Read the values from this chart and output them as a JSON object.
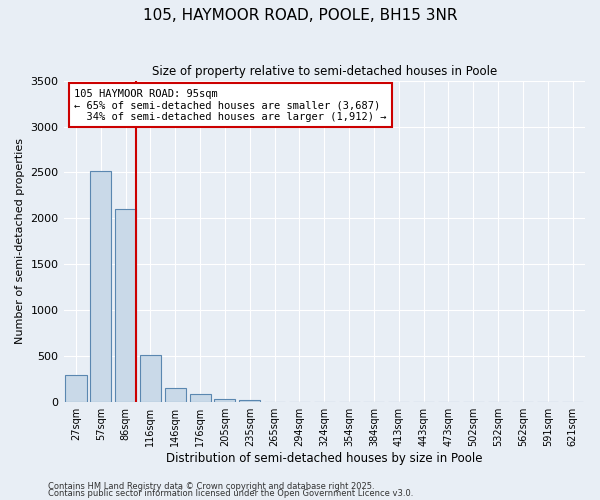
{
  "title1": "105, HAYMOOR ROAD, POOLE, BH15 3NR",
  "title2": "Size of property relative to semi-detached houses in Poole",
  "xlabel": "Distribution of semi-detached houses by size in Poole",
  "ylabel": "Number of semi-detached properties",
  "bin_labels": [
    "27sqm",
    "57sqm",
    "86sqm",
    "116sqm",
    "146sqm",
    "176sqm",
    "205sqm",
    "235sqm",
    "265sqm",
    "294sqm",
    "324sqm",
    "354sqm",
    "384sqm",
    "413sqm",
    "443sqm",
    "473sqm",
    "502sqm",
    "532sqm",
    "562sqm",
    "591sqm",
    "621sqm"
  ],
  "bar_values": [
    300,
    2520,
    2100,
    510,
    160,
    90,
    40,
    25,
    0,
    0,
    0,
    0,
    0,
    0,
    0,
    0,
    0,
    0,
    0,
    0,
    0
  ],
  "bar_color": "#c9d9e8",
  "bar_edge_color": "#5a87b0",
  "property_line_bin": 2,
  "property_label": "105 HAYMOOR ROAD: 95sqm",
  "pct_smaller": "65%",
  "n_smaller": "3,687",
  "pct_larger": "34%",
  "n_larger": "1,912",
  "annotation_box_color": "#ffffff",
  "annotation_box_edge": "#cc0000",
  "vline_color": "#cc0000",
  "bg_color": "#e8eef5",
  "grid_color": "#ffffff",
  "ylim": [
    0,
    3500
  ],
  "yticks": [
    0,
    500,
    1000,
    1500,
    2000,
    2500,
    3000,
    3500
  ],
  "footer1": "Contains HM Land Registry data © Crown copyright and database right 2025.",
  "footer2": "Contains public sector information licensed under the Open Government Licence v3.0."
}
